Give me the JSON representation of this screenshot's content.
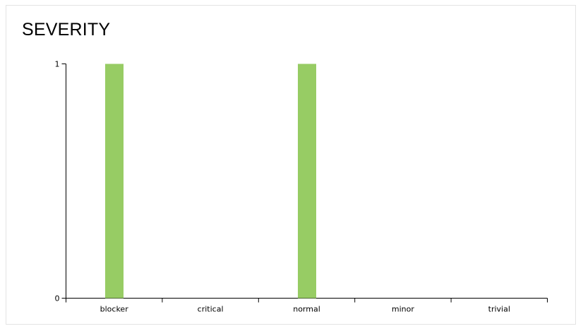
{
  "widget": {
    "title": "SEVERITY"
  },
  "colors": {
    "bar": "#97cc64",
    "axis": "#000000"
  },
  "chart_data": {
    "type": "bar",
    "categories": [
      "blocker",
      "critical",
      "normal",
      "minor",
      "trivial"
    ],
    "values": [
      1,
      0,
      1,
      0,
      0
    ],
    "ylim": [
      0,
      1
    ],
    "yticks": [
      0,
      1
    ],
    "title": "SEVERITY",
    "xlabel": "",
    "ylabel": "",
    "grid": false,
    "legend": false
  }
}
